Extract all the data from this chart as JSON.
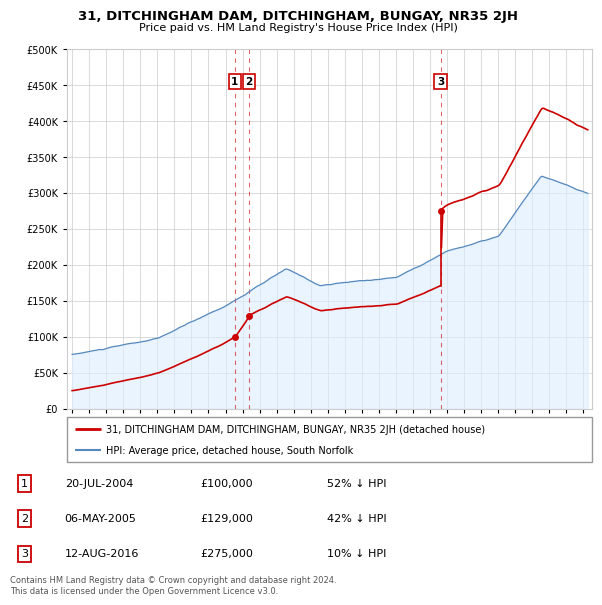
{
  "title": "31, DITCHINGHAM DAM, DITCHINGHAM, BUNGAY, NR35 2JH",
  "subtitle": "Price paid vs. HM Land Registry's House Price Index (HPI)",
  "legend_line1": "31, DITCHINGHAM DAM, DITCHINGHAM, BUNGAY, NR35 2JH (detached house)",
  "legend_line2": "HPI: Average price, detached house, South Norfolk",
  "sales": [
    {
      "label": "1",
      "date_num": 2004.55,
      "price": 100000
    },
    {
      "label": "2",
      "date_num": 2005.37,
      "price": 129000
    },
    {
      "label": "3",
      "date_num": 2016.62,
      "price": 275000
    }
  ],
  "table_rows": [
    {
      "num": "1",
      "date": "20-JUL-2004",
      "price": "£100,000",
      "note": "52% ↓ HPI"
    },
    {
      "num": "2",
      "date": "06-MAY-2005",
      "price": "£129,000",
      "note": "42% ↓ HPI"
    },
    {
      "num": "3",
      "date": "12-AUG-2016",
      "price": "£275,000",
      "note": "10% ↓ HPI"
    }
  ],
  "footer": "Contains HM Land Registry data © Crown copyright and database right 2024.\nThis data is licensed under the Open Government Licence v3.0.",
  "red_color": "#cc0000",
  "blue_color": "#5588bb",
  "blue_fill": "#ddeeff",
  "background_color": "#ffffff",
  "grid_color": "#cccccc",
  "ylim": [
    0,
    500000
  ],
  "xlim_start": 1994.7,
  "xlim_end": 2025.5
}
